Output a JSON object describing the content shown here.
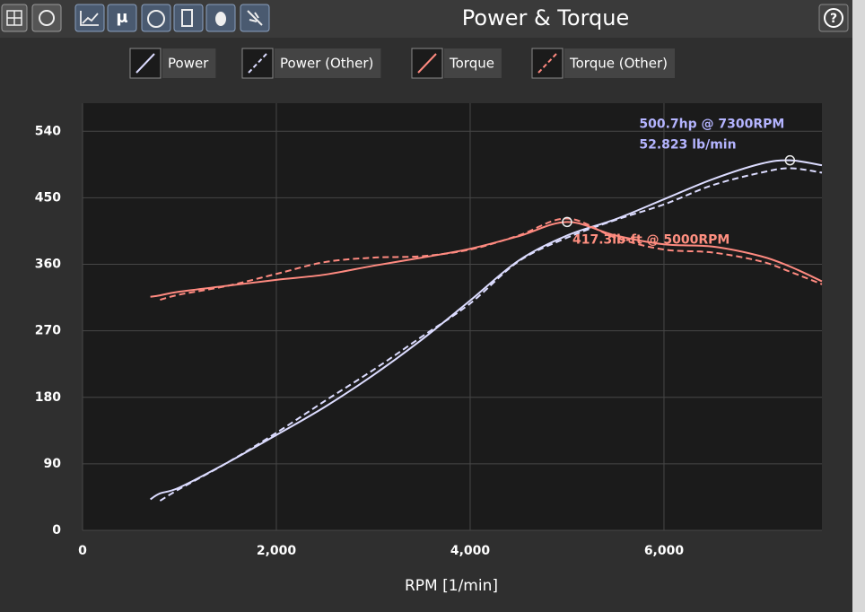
{
  "toolbar": {
    "title": "Power & Torque",
    "mu_button": "μ",
    "help_button": "?"
  },
  "chart_data": {
    "type": "line",
    "xlabel": "RPM [1/min]",
    "x": [
      700,
      800,
      1000,
      1500,
      2000,
      2500,
      3000,
      3500,
      4000,
      4500,
      5000,
      5500,
      6000,
      6500,
      7000,
      7300,
      7630
    ],
    "series": [
      {
        "name": "Power",
        "color": "#dcdcff",
        "dashed": false,
        "values": [
          42,
          50,
          58,
          92,
          129,
          167,
          210,
          258,
          311,
          365,
          399,
          421,
          448,
          475,
          496,
          500.7,
          494
        ]
      },
      {
        "name": "Power (Other)",
        "color": "#dcdcff",
        "dashed": true,
        "values": [
          null,
          40,
          56,
          92,
          132,
          175,
          217,
          262,
          307,
          364,
          396,
          420,
          441,
          467,
          484,
          490,
          484
        ]
      },
      {
        "name": "Torque",
        "color": "#ff8a80",
        "dashed": false,
        "values": [
          316,
          318,
          323,
          331,
          339,
          346,
          358,
          369,
          381,
          398,
          417.3,
          399,
          387,
          384,
          371,
          357,
          337
        ]
      },
      {
        "name": "Torque (Other)",
        "color": "#ff8a80",
        "dashed": true,
        "values": [
          null,
          312,
          319,
          331,
          347,
          363,
          369,
          371,
          380,
          399,
          422,
          396,
          380,
          376,
          364,
          350,
          333
        ]
      }
    ],
    "annotations": [
      {
        "lines": [
          "500.7hp @ 7300RPM",
          "52.823 lb/min"
        ],
        "x": 7300,
        "y": 500.7,
        "color": "#b4b4ff"
      },
      {
        "lines": [
          "417.3lb-ft @ 5000RPM"
        ],
        "x": 5000,
        "y": 417.3,
        "color": "#ff8f80"
      }
    ],
    "xlim": [
      0,
      7630
    ],
    "ylim": [
      0,
      578
    ],
    "xticks": [
      0,
      {
        "value": 2000,
        "label": "2,000"
      },
      {
        "value": 4000,
        "label": "4,000"
      },
      {
        "value": 6000,
        "label": "6,000"
      }
    ],
    "yticks": [
      0,
      90,
      180,
      270,
      360,
      450,
      540
    ],
    "grid": true
  }
}
